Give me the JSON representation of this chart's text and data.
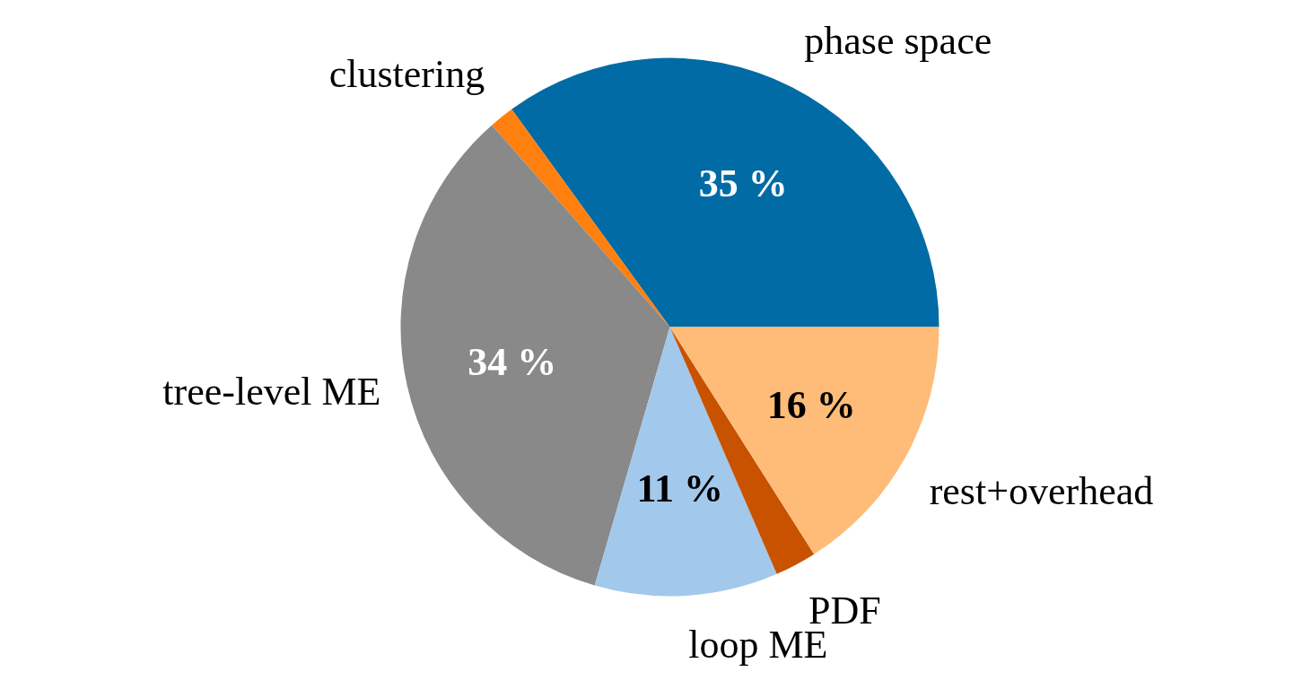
{
  "chart_data": {
    "type": "pie",
    "categories": [
      "phase space",
      "clustering",
      "tree-level ME",
      "loop ME",
      "PDF",
      "rest+overhead"
    ],
    "values": [
      35,
      1.5,
      34,
      11,
      2.5,
      16
    ],
    "value_labels": [
      "35 %",
      null,
      "34 %",
      "11 %",
      null,
      "16 %"
    ],
    "colors": [
      "#006ba4",
      "#ff800e",
      "#898989",
      "#a2c8ec",
      "#c85200",
      "#ffbc79"
    ]
  }
}
